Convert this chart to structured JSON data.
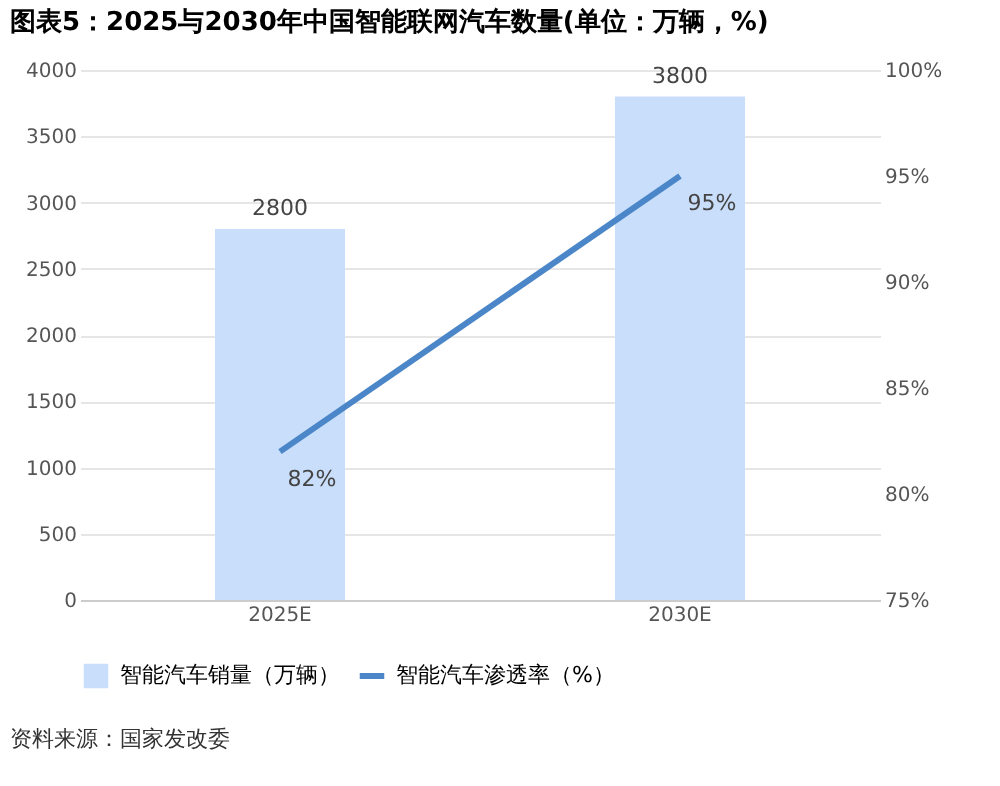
{
  "chart_data": {
    "type": "bar",
    "title": "图表5：2025与2030年中国智能联网汽车数量(单位：万辆，%)",
    "categories": [
      "2025E",
      "2030E"
    ],
    "series": [
      {
        "name": "智能汽车销量（万辆）",
        "color": "#c9defa",
        "values": [
          2800,
          3800
        ],
        "value_labels": [
          "2800",
          "3800"
        ]
      },
      {
        "name": "智能汽车渗透率（%）",
        "type": "line",
        "axis": "y2",
        "color": "#4a86c8",
        "values": [
          82,
          95
        ],
        "value_labels": [
          "82%",
          "95%"
        ]
      }
    ],
    "ylim": [
      0,
      4000
    ],
    "yticks": [
      0,
      500,
      1000,
      1500,
      2000,
      2500,
      3000,
      3500,
      4000
    ],
    "y2lim": [
      75,
      100
    ],
    "y2ticks": [
      {
        "value": 75,
        "label": "75%"
      },
      {
        "value": 80,
        "label": "80%"
      },
      {
        "value": 85,
        "label": "85%"
      },
      {
        "value": 90,
        "label": "90%"
      },
      {
        "value": 95,
        "label": "95%"
      },
      {
        "value": 100,
        "label": "100%"
      }
    ],
    "grid": "y",
    "legend": "bottom",
    "marker": "none",
    "line_style": "solid",
    "annotations": [
      "资料来源：国家发改委"
    ]
  }
}
